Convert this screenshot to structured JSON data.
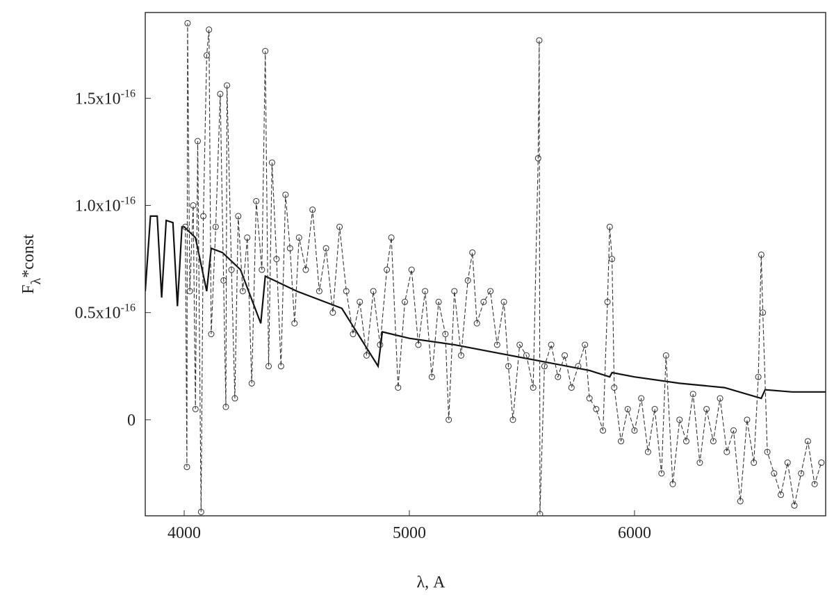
{
  "chart_data": {
    "type": "line",
    "x_label": "λ, A",
    "y_label": {
      "main": "F",
      "sub": "λ",
      "rest": "*const"
    },
    "xlim": [
      3827,
      6849
    ],
    "ylim": [
      -4.48e-17,
      1.9e-16
    ],
    "xticks": [
      4000,
      5000,
      6000
    ],
    "yticks": [
      0,
      {
        "value": 5e-17,
        "label": "0.5x10",
        "sup": "-16"
      },
      {
        "value": 1e-16,
        "label": "1.0x10",
        "sup": "-16"
      },
      {
        "value": 1.5e-16,
        "label": "1.5x10",
        "sup": "-16"
      }
    ],
    "series": [
      {
        "color": "#111",
        "marker": "none",
        "x": [
          3827,
          3850,
          3880,
          3900,
          3920,
          3950,
          3970,
          3990,
          4000,
          4050,
          4100,
          4120,
          4170,
          4250,
          4340,
          4360,
          4500,
          4700,
          4861,
          4880,
          5000,
          5200,
          5400,
          5600,
          5800,
          5890,
          5900,
          6000,
          6200,
          6400,
          6563,
          6580,
          6700,
          6849
        ],
        "values": [
          6e-17,
          9.5e-17,
          9.5e-17,
          5.7e-17,
          9.3e-17,
          9.2e-17,
          5.3e-17,
          9e-17,
          9e-17,
          8.5e-17,
          6e-17,
          8e-17,
          7.8e-17,
          7e-17,
          4.5e-17,
          6.7e-17,
          6e-17,
          5.2e-17,
          2.5e-17,
          4.1e-17,
          3.8e-17,
          3.5e-17,
          3.1e-17,
          2.7e-17,
          2.3e-17,
          2e-17,
          2.2e-17,
          2e-17,
          1.7e-17,
          1.5e-17,
          1e-17,
          1.4e-17,
          1.3e-17,
          1.3e-17
        ]
      },
      {
        "color": "#333",
        "marker": "circle",
        "x": [
          4005,
          4012,
          4015,
          4025,
          4040,
          4050,
          4060,
          4075,
          4085,
          4100,
          4110,
          4120,
          4140,
          4160,
          4175,
          4185,
          4190,
          4210,
          4225,
          4240,
          4260,
          4280,
          4300,
          4320,
          4345,
          4360,
          4375,
          4390,
          4410,
          4430,
          4450,
          4470,
          4490,
          4510,
          4540,
          4570,
          4600,
          4630,
          4660,
          4690,
          4720,
          4750,
          4780,
          4810,
          4840,
          4870,
          4900,
          4920,
          4950,
          4980,
          5010,
          5040,
          5070,
          5100,
          5130,
          5160,
          5175,
          5200,
          5230,
          5260,
          5280,
          5300,
          5330,
          5360,
          5390,
          5420,
          5440,
          5460,
          5490,
          5520,
          5550,
          5572,
          5577,
          5580,
          5600,
          5630,
          5660,
          5690,
          5720,
          5750,
          5780,
          5800,
          5830,
          5860,
          5880,
          5890,
          5900,
          5910,
          5940,
          5970,
          6000,
          6030,
          6060,
          6090,
          6120,
          6140,
          6170,
          6200,
          6230,
          6260,
          6290,
          6320,
          6350,
          6380,
          6410,
          6440,
          6470,
          6500,
          6530,
          6550,
          6563,
          6570,
          6590,
          6620,
          6650,
          6680,
          6710,
          6740,
          6770,
          6800,
          6830
        ],
        "values": [
          9e-17,
          -2.2e-17,
          1.85e-16,
          6e-17,
          1e-16,
          5e-18,
          1.3e-16,
          -4.3e-17,
          9.5e-17,
          1.7e-16,
          1.82e-16,
          4e-17,
          9e-17,
          1.52e-16,
          6.5e-17,
          6e-18,
          1.56e-16,
          7e-17,
          1e-17,
          9.5e-17,
          6e-17,
          8.5e-17,
          1.7e-17,
          1.02e-16,
          7e-17,
          1.72e-16,
          2.5e-17,
          1.2e-16,
          7.5e-17,
          2.5e-17,
          1.05e-16,
          8e-17,
          4.5e-17,
          8.5e-17,
          7e-17,
          9.8e-17,
          6e-17,
          8e-17,
          5e-17,
          9e-17,
          6e-17,
          4e-17,
          5.5e-17,
          3e-17,
          6e-17,
          3.5e-17,
          7e-17,
          8.5e-17,
          1.5e-17,
          5.5e-17,
          7e-17,
          3.5e-17,
          6e-17,
          2e-17,
          5.5e-17,
          4e-17,
          0,
          6e-17,
          3e-17,
          6.5e-17,
          7.8e-17,
          4.5e-17,
          5.5e-17,
          6e-17,
          3.5e-17,
          5.5e-17,
          2.5e-17,
          0,
          3.5e-17,
          3e-17,
          1.5e-17,
          1.22e-16,
          1.77e-16,
          -4.4e-17,
          2.5e-17,
          3.5e-17,
          2e-17,
          3e-17,
          1.5e-17,
          2.5e-17,
          3.5e-17,
          1e-17,
          5e-18,
          -5e-18,
          5.5e-17,
          9e-17,
          7.5e-17,
          1.5e-17,
          -1e-17,
          5e-18,
          -5e-18,
          1e-17,
          -1.5e-17,
          5e-18,
          -2.5e-17,
          3e-17,
          -3e-17,
          0,
          -1e-17,
          1.2e-17,
          -2e-17,
          5e-18,
          -1e-17,
          1e-17,
          -1.5e-17,
          -5e-18,
          -3.8e-17,
          0,
          -2e-17,
          2e-17,
          7.7e-17,
          5e-17,
          -1.5e-17,
          -2.5e-17,
          -3.5e-17,
          -2e-17,
          -4e-17,
          -2.5e-17,
          -1e-17,
          -3e-17,
          -2e-17
        ]
      }
    ]
  }
}
